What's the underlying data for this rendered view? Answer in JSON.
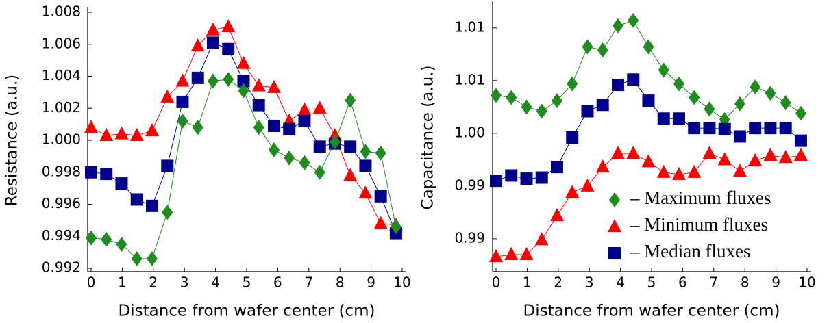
{
  "chart_data": [
    {
      "type": "line",
      "x_label": "Distance from wafer center (cm)",
      "y_label": "Resistance (a.u.)",
      "x": [
        0,
        0.49,
        0.98,
        1.47,
        1.96,
        2.45,
        2.94,
        3.43,
        3.92,
        4.41,
        4.9,
        5.39,
        5.88,
        6.37,
        6.86,
        7.35,
        7.84,
        8.33,
        8.82,
        9.31,
        9.8
      ],
      "xlim": [
        0,
        10
      ],
      "xticks": [
        0,
        1,
        2,
        3,
        4,
        5,
        6,
        7,
        8,
        9,
        10
      ],
      "ylim": [
        0.992,
        1.008
      ],
      "yticks": [
        0.992,
        0.994,
        0.996,
        0.998,
        {
          "value": 1.0,
          "label": "1.000"
        },
        1.002,
        1.004,
        1.006,
        1.008
      ],
      "series": [
        {
          "color": "#ff0000",
          "marker": "triangle",
          "values": [
            1.0008,
            1.0003,
            1.0004,
            1.0003,
            1.0006,
            1.0027,
            1.0037,
            1.0059,
            1.0069,
            1.0071,
            1.0048,
            1.0034,
            1.0033,
            1.0012,
            1.0019,
            1.002,
            1.0003,
            0.9978,
            0.9967,
            0.9948,
            0.9947
          ]
        },
        {
          "color": "#00008b",
          "marker": "square",
          "values": [
            0.998,
            0.9979,
            0.9973,
            0.9963,
            0.9959,
            0.9984,
            1.0024,
            1.0039,
            1.0061,
            1.0057,
            1.0037,
            1.0022,
            1.0009,
            1.0007,
            1.0012,
            0.9996,
            0.9998,
            0.9996,
            0.9984,
            0.9965,
            0.9942
          ]
        },
        {
          "color": "#1e8c1e",
          "marker": "diamond",
          "values": [
            0.9939,
            0.9938,
            0.9935,
            0.9926,
            0.9926,
            0.9955,
            1.0012,
            1.0008,
            1.0037,
            1.0038,
            1.0031,
            1.0008,
            0.9994,
            0.9989,
            0.9986,
            0.998,
            0.9999,
            1.0025,
            0.9993,
            0.9992,
            0.9946
          ]
        }
      ]
    },
    {
      "type": "line",
      "x_label": "Distance from wafer center (cm)",
      "y_label": "Capacitance (a.u.)",
      "x": [
        0,
        0.49,
        0.98,
        1.47,
        1.96,
        2.45,
        2.94,
        3.43,
        3.92,
        4.41,
        4.9,
        5.39,
        5.88,
        6.37,
        6.86,
        7.35,
        7.84,
        8.33,
        8.82,
        9.31,
        9.8
      ],
      "xlim": [
        0,
        10
      ],
      "xticks": [
        0,
        1,
        2,
        3,
        4,
        5,
        6,
        7,
        8,
        9,
        10
      ],
      "ylim": [
        0.9872,
        1.012
      ],
      "yticks": [
        {
          "value": 0.99,
          "label": "0.99"
        },
        {
          "value": 0.995,
          "label": "0.99"
        },
        {
          "value": 1.0,
          "label": "1.00"
        },
        {
          "value": 1.005,
          "label": "1.01"
        },
        {
          "value": 1.01,
          "label": "1.01"
        }
      ],
      "legend": "lower-right",
      "series": [
        {
          "name": "– Maximum fluxes",
          "color": "#1e8c1e",
          "marker": "diamond",
          "values": [
            1.0036,
            1.0034,
            1.0025,
            1.0021,
            1.0031,
            1.0047,
            1.0082,
            1.0079,
            1.0102,
            1.0107,
            1.0082,
            1.006,
            1.0047,
            1.0034,
            1.0023,
            1.0013,
            1.0028,
            1.0044,
            1.0038,
            1.0029,
            1.0019
          ]
        },
        {
          "name": "– Minimum fluxes",
          "color": "#ff0000",
          "marker": "triangle",
          "values": [
            0.9883,
            0.9885,
            0.9885,
            0.9899,
            0.9922,
            0.9944,
            0.995,
            0.9968,
            0.9981,
            0.9981,
            0.9973,
            0.9963,
            0.9961,
            0.9963,
            0.9981,
            0.9975,
            0.9964,
            0.9974,
            0.9979,
            0.9977,
            0.9979
          ]
        },
        {
          "name": "– Median fluxes",
          "color": "#00008b",
          "marker": "square",
          "values": [
            0.9955,
            0.996,
            0.9957,
            0.9958,
            0.9968,
            0.9996,
            1.0021,
            1.0027,
            1.0046,
            1.0051,
            1.0031,
            1.0014,
            1.0014,
            1.0005,
            1.0005,
            1.0004,
            0.9997,
            1.0005,
            1.0005,
            1.0005,
            0.9993
          ]
        }
      ]
    }
  ]
}
